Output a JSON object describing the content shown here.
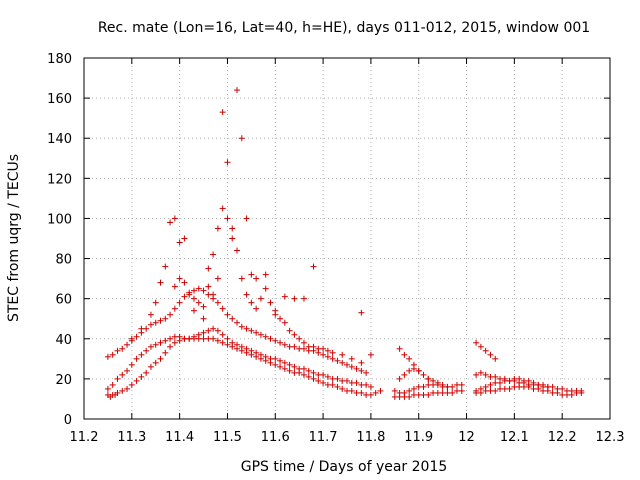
{
  "chart_data": {
    "type": "scatter",
    "title": "Rec. mate (Lon=16, Lat=40, h=HE), days 011-012, 2015, window 001",
    "xlabel": "GPS time / Days of year 2015",
    "ylabel": "STEC from uqrg / TECUs",
    "xlim": [
      11.2,
      12.3
    ],
    "ylim": [
      0,
      180
    ],
    "xticks": [
      "11.2",
      "11.3",
      "11.4",
      "11.5",
      "11.6",
      "11.7",
      "11.8",
      "11.9",
      "12",
      "12.1",
      "12.2",
      "12.3"
    ],
    "yticks": [
      "0",
      "20",
      "40",
      "60",
      "80",
      "100",
      "120",
      "140",
      "160",
      "180"
    ],
    "grid": true,
    "marker": "+",
    "color": "#cc0000",
    "series": [
      {
        "x": [
          11.25,
          11.255,
          11.26,
          11.265,
          11.27,
          11.28,
          11.29,
          11.3,
          11.31,
          11.32,
          11.33,
          11.34,
          11.35,
          11.36,
          11.37,
          11.38,
          11.39,
          11.4,
          11.41,
          11.42,
          11.43,
          11.44,
          11.45,
          11.46,
          11.47,
          11.48,
          11.49,
          11.5,
          11.51,
          11.52,
          11.53,
          11.54,
          11.55,
          11.56,
          11.57,
          11.58,
          11.59,
          11.6,
          11.61,
          11.62,
          11.63,
          11.64,
          11.65,
          11.66,
          11.67,
          11.68,
          11.69,
          11.7,
          11.71,
          11.72,
          11.73,
          11.74,
          11.75,
          11.76,
          11.77,
          11.78,
          11.79,
          11.8,
          11.81,
          11.82,
          11.85,
          11.86,
          11.87,
          11.88,
          11.89,
          11.9,
          11.91,
          11.92,
          11.93,
          11.94,
          11.95,
          11.96,
          11.97,
          11.98,
          11.99,
          12.02,
          12.03,
          12.04,
          12.05,
          12.06,
          12.07,
          12.08,
          12.09,
          12.1,
          12.11,
          12.12,
          12.13,
          12.14,
          12.15,
          12.16,
          12.17,
          12.18,
          12.19,
          12.2,
          12.21,
          12.22,
          12.23,
          12.24
        ],
        "y": [
          12,
          11,
          12,
          12,
          13,
          14,
          15,
          17,
          19,
          21,
          23,
          26,
          28,
          30,
          33,
          36,
          38,
          39,
          40,
          40,
          40,
          40,
          40,
          40,
          40,
          39,
          38,
          37,
          36,
          35,
          34,
          33,
          32,
          31,
          30,
          29,
          28,
          27,
          26,
          25,
          24,
          23,
          23,
          22,
          21,
          20,
          19,
          18,
          17,
          17,
          16,
          15,
          14,
          14,
          13,
          13,
          12,
          12,
          13,
          14,
          11,
          11,
          11,
          11,
          12,
          12,
          12,
          12,
          13,
          13,
          13,
          13,
          13,
          14,
          14,
          13,
          13,
          14,
          14,
          14,
          15,
          15,
          15,
          16,
          16,
          16,
          16,
          15,
          15,
          14,
          14,
          13,
          13,
          12,
          12,
          12,
          13,
          13
        ]
      },
      {
        "x": [
          11.25,
          11.26,
          11.27,
          11.28,
          11.29,
          11.3,
          11.31,
          11.32,
          11.33,
          11.34,
          11.35,
          11.36,
          11.37,
          11.38,
          11.39,
          11.4,
          11.41,
          11.42,
          11.43,
          11.44,
          11.45,
          11.46,
          11.47,
          11.48,
          11.49,
          11.5,
          11.51,
          11.52,
          11.53,
          11.54,
          11.55,
          11.56,
          11.57,
          11.58,
          11.59,
          11.6,
          11.61,
          11.62,
          11.63,
          11.64,
          11.65,
          11.66,
          11.67,
          11.68,
          11.69,
          11.7,
          11.71,
          11.72,
          11.73,
          11.74,
          11.75,
          11.76,
          11.77,
          11.78,
          11.79,
          11.8,
          11.85,
          11.86,
          11.87,
          11.88,
          11.89,
          11.9,
          11.91,
          11.92,
          11.93,
          11.94,
          11.95,
          11.96,
          11.97,
          11.98,
          11.99,
          12.02,
          12.03,
          12.04,
          12.05,
          12.06,
          12.07,
          12.08,
          12.09,
          12.1,
          12.11,
          12.12,
          12.13,
          12.14,
          12.15,
          12.16,
          12.17,
          12.18,
          12.19,
          12.2,
          12.21,
          12.22,
          12.23,
          12.24
        ],
        "y": [
          15,
          17,
          20,
          22,
          24,
          27,
          30,
          32,
          34,
          36,
          37,
          38,
          39,
          40,
          41,
          41,
          40,
          40,
          41,
          42,
          43,
          44,
          45,
          44,
          42,
          40,
          38,
          37,
          36,
          35,
          34,
          33,
          32,
          31,
          30,
          30,
          29,
          28,
          27,
          26,
          25,
          25,
          24,
          23,
          22,
          22,
          21,
          20,
          20,
          19,
          19,
          18,
          18,
          17,
          17,
          16,
          14,
          13,
          13,
          14,
          15,
          16,
          16,
          17,
          17,
          17,
          16,
          16,
          16,
          17,
          17,
          14,
          15,
          16,
          17,
          18,
          18,
          19,
          19,
          20,
          20,
          19,
          19,
          18,
          17,
          17,
          16,
          16,
          15,
          15,
          14,
          14,
          14,
          14
        ]
      },
      {
        "x": [
          11.25,
          11.26,
          11.27,
          11.28,
          11.29,
          11.3,
          11.31,
          11.32,
          11.33,
          11.34,
          11.35,
          11.36,
          11.37,
          11.38,
          11.39,
          11.4,
          11.41,
          11.42,
          11.43,
          11.44,
          11.45,
          11.46,
          11.47,
          11.48,
          11.49,
          11.5,
          11.51,
          11.52,
          11.53,
          11.54,
          11.55,
          11.56,
          11.57,
          11.58,
          11.59,
          11.6,
          11.61,
          11.62,
          11.63,
          11.64,
          11.65,
          11.66,
          11.67,
          11.68,
          11.69,
          11.7,
          11.71,
          11.72,
          11.73,
          11.74,
          11.75,
          11.76,
          11.77,
          11.78,
          11.79,
          11.86,
          11.87,
          11.88,
          11.89,
          11.9,
          11.91,
          11.92,
          11.93,
          11.94,
          11.95,
          11.96,
          12.02,
          12.03,
          12.04,
          12.05,
          12.06,
          12.07,
          12.08,
          12.09,
          12.1,
          12.11,
          12.12,
          12.13,
          12.14,
          12.15,
          12.16,
          12.17
        ],
        "y": [
          31,
          32,
          34,
          35,
          37,
          39,
          41,
          43,
          45,
          47,
          48,
          49,
          50,
          52,
          55,
          58,
          61,
          63,
          64,
          65,
          64,
          62,
          60,
          58,
          55,
          52,
          50,
          48,
          46,
          45,
          44,
          43,
          42,
          41,
          40,
          39,
          38,
          37,
          36,
          36,
          35,
          35,
          34,
          34,
          33,
          32,
          31,
          30,
          29,
          28,
          27,
          26,
          25,
          24,
          23,
          20,
          22,
          24,
          25,
          24,
          22,
          20,
          19,
          18,
          17,
          16,
          22,
          23,
          22,
          21,
          21,
          20,
          20,
          19,
          19,
          18,
          18,
          17,
          17,
          17,
          16,
          16
        ]
      },
      {
        "x": [
          11.3,
          11.32,
          11.34,
          11.35,
          11.36,
          11.37,
          11.38,
          11.39,
          11.4,
          11.41,
          11.42,
          11.43,
          11.44,
          11.45,
          11.46,
          11.47,
          11.48,
          11.49,
          11.5,
          11.51,
          11.52,
          11.53,
          11.54,
          11.55,
          11.56,
          11.57,
          11.58,
          11.59,
          11.6,
          11.61,
          11.62,
          11.63,
          11.64,
          11.65,
          11.66,
          11.67,
          11.68,
          11.69,
          11.7,
          11.71,
          11.72,
          11.74,
          11.76,
          11.78,
          11.8,
          11.86,
          11.87,
          11.88,
          11.89,
          11.9,
          11.92,
          12.02,
          12.03,
          12.04,
          12.05,
          12.06
        ],
        "y": [
          40,
          45,
          52,
          58,
          68,
          76,
          98,
          100,
          88,
          90,
          62,
          60,
          58,
          56,
          75,
          82,
          95,
          105,
          100,
          90,
          84,
          70,
          62,
          58,
          55,
          60,
          65,
          58,
          54,
          50,
          48,
          44,
          42,
          40,
          38,
          36,
          36,
          35,
          35,
          34,
          33,
          32,
          30,
          28,
          32,
          35,
          32,
          30,
          27,
          24,
          20,
          38,
          36,
          34,
          32,
          30
        ]
      },
      {
        "x": [
          11.39,
          11.4,
          11.41,
          11.43,
          11.45,
          11.46,
          11.47,
          11.48,
          11.49,
          11.5,
          11.51,
          11.52,
          11.53,
          11.54,
          11.55,
          11.56,
          11.58,
          11.6,
          11.62,
          11.64,
          11.66,
          11.68,
          11.78
        ],
        "y": [
          66,
          70,
          68,
          54,
          50,
          66,
          62,
          70,
          153,
          128,
          95,
          164,
          140,
          100,
          72,
          70,
          72,
          52,
          61,
          60,
          60,
          76,
          53
        ]
      }
    ]
  }
}
